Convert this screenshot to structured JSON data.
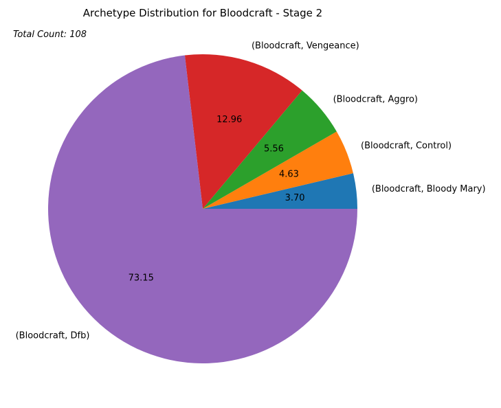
{
  "chart_data": {
    "type": "pie",
    "title": "Archetype Distribution for Bloodcraft - Stage 2",
    "annotation": "Total Count: 108",
    "categories": [
      "(Bloodcraft, Bloody Mary)",
      "(Bloodcraft, Control)",
      "(Bloodcraft, Aggro)",
      "(Bloodcraft, Vengeance)",
      "(Bloodcraft, Dfb)"
    ],
    "values": [
      3.7,
      4.63,
      5.56,
      12.96,
      73.15
    ],
    "value_labels": [
      "3.70",
      "4.63",
      "5.56",
      "12.96",
      "73.15"
    ],
    "colors": [
      "#1f77b4",
      "#ff7f0e",
      "#2ca02c",
      "#d62728",
      "#9467bd"
    ],
    "start_angle_deg": 0,
    "direction": "counterclockwise"
  }
}
